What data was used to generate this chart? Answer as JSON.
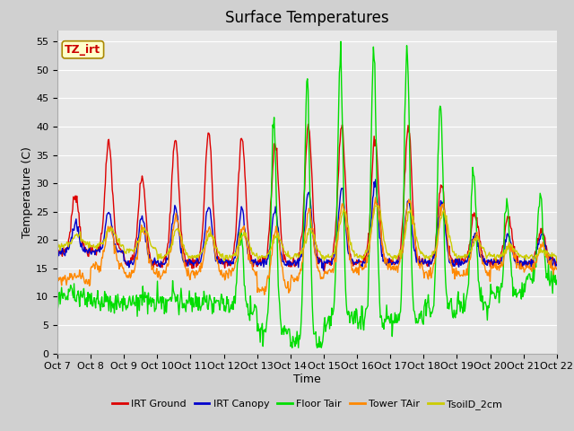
{
  "title": "Surface Temperatures",
  "xlabel": "Time",
  "ylabel": "Temperature (C)",
  "ylim": [
    0,
    57
  ],
  "yticks": [
    0,
    5,
    10,
    15,
    20,
    25,
    30,
    35,
    40,
    45,
    50,
    55
  ],
  "xtick_labels": [
    "Oct 7",
    "Oct 8",
    "Oct 9",
    "Oct 10",
    "Oct 11",
    "Oct 12",
    "Oct 13",
    "Oct 14",
    "Oct 15",
    "Oct 16",
    "Oct 17",
    "Oct 18",
    "Oct 19",
    "Oct 20",
    "Oct 21",
    "Oct 22"
  ],
  "legend_entries": [
    "IRT Ground",
    "IRT Canopy",
    "Floor Tair",
    "Tower TAir",
    "TsoilD_2cm"
  ],
  "line_colors": [
    "#dd0000",
    "#0000cc",
    "#00dd00",
    "#ff8800",
    "#cccc00"
  ],
  "annotation_text": "TZ_irt",
  "annotation_color": "#cc0000",
  "annotation_bg": "#ffffcc",
  "annotation_border": "#aa8800",
  "fig_bg": "#d0d0d0",
  "axes_bg": "#e8e8e8",
  "grid_color": "#ffffff",
  "title_fontsize": 12,
  "axis_label_fontsize": 9,
  "tick_fontsize": 8,
  "legend_fontsize": 8
}
